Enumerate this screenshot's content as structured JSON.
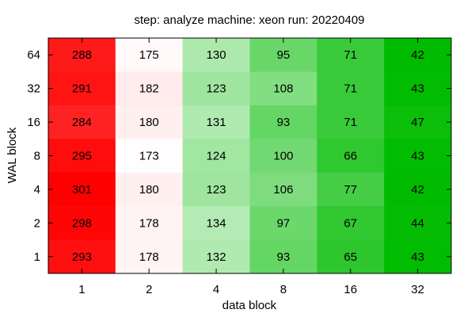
{
  "chart_data": {
    "type": "heatmap",
    "title": "step: analyze  machine: xeon  run: 20220409",
    "xlabel": "data block",
    "ylabel": "WAL block",
    "x_categories": [
      "1",
      "2",
      "4",
      "8",
      "16",
      "32"
    ],
    "y_categories": [
      "64",
      "32",
      "16",
      "8",
      "4",
      "2",
      "1"
    ],
    "values": [
      [
        288,
        175,
        130,
        95,
        71,
        42
      ],
      [
        291,
        182,
        123,
        108,
        71,
        43
      ],
      [
        284,
        180,
        131,
        93,
        71,
        47
      ],
      [
        295,
        173,
        124,
        100,
        66,
        43
      ],
      [
        301,
        180,
        123,
        106,
        77,
        42
      ],
      [
        298,
        178,
        134,
        97,
        67,
        44
      ],
      [
        293,
        178,
        132,
        93,
        65,
        43
      ]
    ],
    "colors": {
      "high": "#ff0000",
      "mid": "#ffffff",
      "low": "#00bb00",
      "mid_value": 172
    },
    "grid": false,
    "legend": "none"
  }
}
